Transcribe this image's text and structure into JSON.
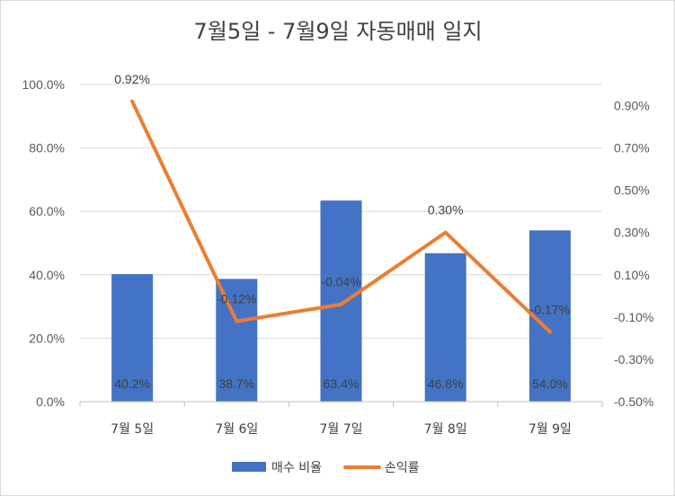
{
  "chart_data": {
    "type": "bar",
    "title": "7월5일 - 7월9일 자동매매 일지",
    "categories": [
      "7월 5일",
      "7월 6일",
      "7월 7일",
      "7월 8일",
      "7월 9일"
    ],
    "series": [
      {
        "name": "매수 비율",
        "type": "bar",
        "axis": "primary",
        "color": "#4472c4",
        "values": [
          40.2,
          38.7,
          63.4,
          46.8,
          54.0
        ],
        "labels": [
          "40.2%",
          "38.7%",
          "63.4%",
          "46.8%",
          "54.0%"
        ]
      },
      {
        "name": "손익률",
        "type": "line",
        "axis": "secondary",
        "color": "#ed7d31",
        "values": [
          0.92,
          -0.12,
          -0.04,
          0.3,
          -0.17
        ],
        "labels": [
          "0.92%",
          "-0.12%",
          "-0.04%",
          "0.30%",
          "-0.17%"
        ]
      }
    ],
    "y_left": {
      "range": [
        0,
        100
      ],
      "ticks": [
        0,
        20,
        40,
        60,
        80,
        100
      ],
      "tick_labels": [
        "0.0%",
        "20.0%",
        "40.0%",
        "60.0%",
        "80.0%",
        "100.0%"
      ]
    },
    "y_right": {
      "range": [
        -0.5,
        1.0
      ],
      "ticks": [
        -0.5,
        -0.3,
        -0.1,
        0.1,
        0.3,
        0.5,
        0.7,
        0.9
      ],
      "tick_labels": [
        "-0.50%",
        "-0.30%",
        "-0.10%",
        "0.10%",
        "0.30%",
        "0.50%",
        "0.70%",
        "0.90%"
      ]
    },
    "grid": true,
    "legend": "bottom"
  }
}
